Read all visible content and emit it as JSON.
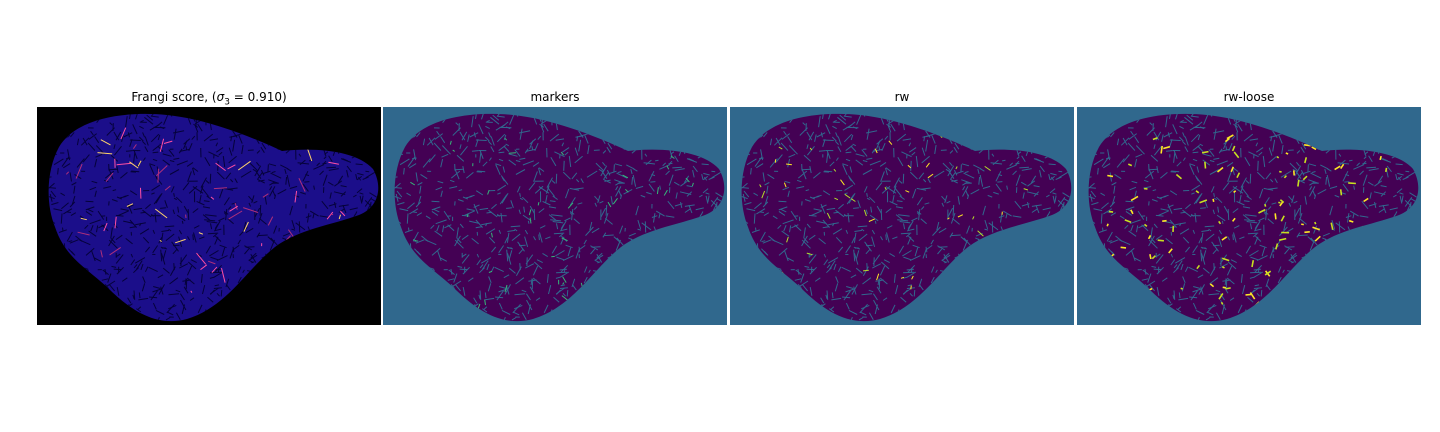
{
  "figure": {
    "panels": [
      {
        "id": "frangi",
        "title_prefix": "Frangi score, (",
        "title_math": "σ",
        "title_sub": "3",
        "title_suffix": " = 0.910)",
        "background": "#000000",
        "blob_fill": "#1b0e8a",
        "texture_color": "#05023a",
        "highlight_colors": [
          "#ff4fa3",
          "#ffd36b",
          "#b0307a"
        ]
      },
      {
        "id": "markers",
        "title": "markers",
        "background": "#30688d",
        "blob_fill": "#440154",
        "texture_color": "#31688e",
        "highlight_colors": [
          "#35b779"
        ]
      },
      {
        "id": "rw",
        "title": "rw",
        "background": "#30688d",
        "blob_fill": "#440154",
        "texture_color": "#31688e",
        "highlight_colors": [
          "#fde725",
          "#b5de2b"
        ]
      },
      {
        "id": "rw-loose",
        "title": "rw-loose",
        "background": "#30688d",
        "blob_fill": "#440154",
        "texture_color": "#31688e",
        "highlight_colors": [
          "#fde725",
          "#c8e020"
        ]
      }
    ]
  }
}
